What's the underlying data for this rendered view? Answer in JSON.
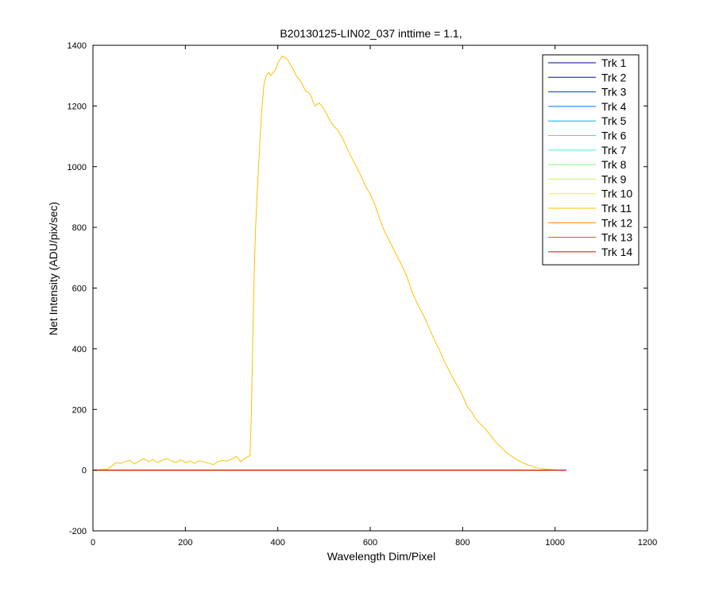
{
  "chart_data": {
    "type": "line",
    "title": "B20130125-LIN02_037 inttime = 1.1,",
    "xlabel": "Wavelength Dim/Pixel",
    "ylabel": "Net Intensity (ADU/pix/sec)",
    "xlim": [
      0,
      1200
    ],
    "ylim": [
      -200,
      1400
    ],
    "x_ticks": [
      0,
      200,
      400,
      600,
      800,
      1000,
      1200
    ],
    "y_ticks": [
      -200,
      0,
      200,
      400,
      600,
      800,
      1000,
      1200,
      1400
    ],
    "x_tick_labels": [
      "0",
      "200",
      "400",
      "600",
      "800",
      "1000",
      "1200"
    ],
    "y_tick_labels": [
      "-200",
      "0",
      "200",
      "400",
      "600",
      "800",
      "1000",
      "1200",
      "1400"
    ],
    "grid": false,
    "legend_position": "top-right",
    "series": [
      {
        "name": "Trk 1",
        "color": "#00008F",
        "x": [
          0,
          1024
        ],
        "y": [
          0,
          0
        ]
      },
      {
        "name": "Trk 2",
        "color": "#0000DF",
        "x": [
          0,
          1024
        ],
        "y": [
          0,
          0
        ]
      },
      {
        "name": "Trk 3",
        "color": "#0030FF",
        "x": [
          0,
          1024
        ],
        "y": [
          0,
          0
        ]
      },
      {
        "name": "Trk 4",
        "color": "#0070FF",
        "x": [
          0,
          1024
        ],
        "y": [
          0,
          0
        ]
      },
      {
        "name": "Trk 5",
        "color": "#00B0FF",
        "x": [
          0,
          1024
        ],
        "y": [
          0,
          0
        ]
      },
      {
        "name": "Trk 6",
        "color": "#10F0EF",
        "x": [
          0,
          1024
        ],
        "y": [
          0,
          0
        ]
      },
      {
        "name": "Trk 7",
        "color": "#40FFBF",
        "x": [
          0,
          1024
        ],
        "y": [
          0,
          0
        ]
      },
      {
        "name": "Trk 8",
        "color": "#80FF80",
        "x": [
          0,
          1024
        ],
        "y": [
          0,
          0
        ]
      },
      {
        "name": "Trk 9",
        "color": "#BFFF40",
        "x": [
          0,
          1024
        ],
        "y": [
          0,
          0
        ]
      },
      {
        "name": "Trk 10",
        "color": "#F0FF10",
        "x": [
          0,
          1024
        ],
        "y": [
          0,
          0
        ]
      },
      {
        "name": "Trk 11",
        "color": "#FFBF00",
        "x": [
          0,
          30,
          40,
          50,
          60,
          70,
          80,
          90,
          100,
          110,
          120,
          130,
          140,
          150,
          160,
          170,
          180,
          190,
          200,
          210,
          220,
          230,
          240,
          250,
          260,
          270,
          280,
          290,
          300,
          310,
          320,
          330,
          340,
          343,
          346,
          349,
          352,
          355,
          360,
          365,
          370,
          375,
          380,
          385,
          390,
          395,
          400,
          405,
          410,
          415,
          420,
          430,
          440,
          450,
          460,
          470,
          480,
          490,
          495,
          500,
          510,
          520,
          530,
          540,
          550,
          560,
          570,
          580,
          590,
          600,
          610,
          620,
          630,
          640,
          650,
          660,
          670,
          680,
          690,
          700,
          710,
          720,
          730,
          740,
          750,
          760,
          770,
          780,
          790,
          800,
          810,
          820,
          830,
          840,
          850,
          860,
          870,
          880,
          890,
          900,
          920,
          940,
          960,
          980,
          1000,
          1010,
          1020,
          1024
        ],
        "y": [
          0,
          3,
          12,
          25,
          22,
          28,
          32,
          20,
          30,
          38,
          28,
          35,
          25,
          33,
          38,
          30,
          26,
          34,
          25,
          30,
          22,
          31,
          27,
          24,
          18,
          28,
          32,
          30,
          36,
          45,
          28,
          40,
          48,
          200,
          450,
          650,
          800,
          900,
          1050,
          1180,
          1270,
          1300,
          1310,
          1300,
          1310,
          1320,
          1340,
          1355,
          1365,
          1360,
          1355,
          1330,
          1300,
          1280,
          1250,
          1240,
          1200,
          1210,
          1200,
          1190,
          1160,
          1135,
          1120,
          1095,
          1060,
          1030,
          1000,
          970,
          935,
          910,
          875,
          830,
          790,
          760,
          730,
          700,
          670,
          635,
          590,
          555,
          525,
          495,
          460,
          425,
          395,
          360,
          330,
          300,
          275,
          245,
          210,
          190,
          165,
          150,
          135,
          115,
          95,
          80,
          65,
          52,
          32,
          18,
          8,
          3,
          1,
          0,
          0,
          0
        ]
      },
      {
        "name": "Trk 12",
        "color": "#FF8000",
        "x": [
          0,
          1024
        ],
        "y": [
          0,
          0
        ]
      },
      {
        "name": "Trk 13",
        "color": "#FF4000",
        "x": [
          0,
          1024
        ],
        "y": [
          0,
          0
        ]
      },
      {
        "name": "Trk 14",
        "color": "#DF0000",
        "x": [
          0,
          1024
        ],
        "y": [
          0,
          0
        ]
      }
    ]
  }
}
